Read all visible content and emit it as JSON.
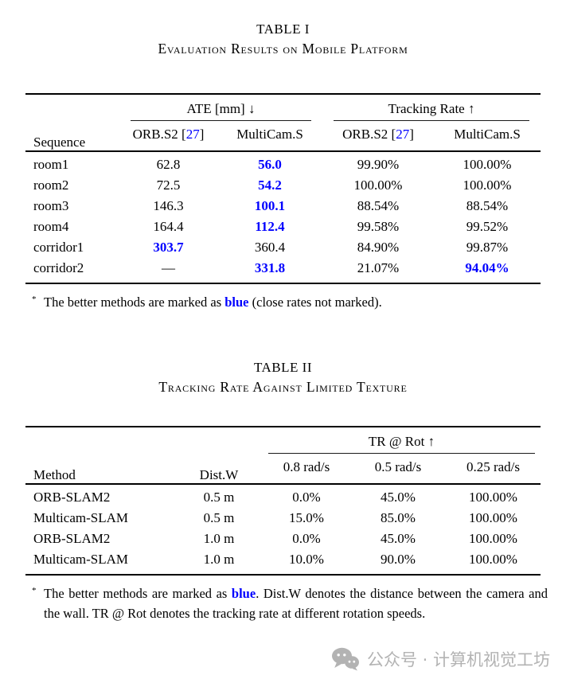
{
  "colors": {
    "accent_blue": "#0000ff",
    "text": "#000000",
    "watermark_gray": "#b3b3b3"
  },
  "table1": {
    "label": "TABLE I",
    "caption": "Evaluation Results on Mobile Platform",
    "columns": {
      "row_header": "Sequence",
      "groups": [
        {
          "label": "ATE [mm] ↓"
        },
        {
          "label": "Tracking Rate ↑"
        }
      ],
      "subcolumns": [
        {
          "segments": [
            {
              "text": "ORB.S2 ["
            },
            {
              "text": "27",
              "style": "cite"
            },
            {
              "text": "]"
            }
          ]
        },
        {
          "segments": [
            {
              "text": "MultiCam.S"
            }
          ]
        },
        {
          "segments": [
            {
              "text": "ORB.S2 ["
            },
            {
              "text": "27",
              "style": "cite"
            },
            {
              "text": "]"
            }
          ]
        },
        {
          "segments": [
            {
              "text": "MultiCam.S"
            }
          ]
        }
      ]
    },
    "rows": [
      {
        "cells": [
          {
            "text": "room1"
          },
          {
            "text": "62.8"
          },
          {
            "text": "56.0",
            "style": "blue"
          },
          {
            "text": "99.90%"
          },
          {
            "text": "100.00%"
          }
        ]
      },
      {
        "cells": [
          {
            "text": "room2"
          },
          {
            "text": "72.5"
          },
          {
            "text": "54.2",
            "style": "blue"
          },
          {
            "text": "100.00%"
          },
          {
            "text": "100.00%"
          }
        ]
      },
      {
        "cells": [
          {
            "text": "room3"
          },
          {
            "text": "146.3"
          },
          {
            "text": "100.1",
            "style": "blue"
          },
          {
            "text": "88.54%"
          },
          {
            "text": "88.54%"
          }
        ]
      },
      {
        "cells": [
          {
            "text": "room4"
          },
          {
            "text": "164.4"
          },
          {
            "text": "112.4",
            "style": "blue"
          },
          {
            "text": "99.58%"
          },
          {
            "text": "99.52%"
          }
        ]
      },
      {
        "cells": [
          {
            "text": "corridor1"
          },
          {
            "text": "303.7",
            "style": "blue"
          },
          {
            "text": "360.4"
          },
          {
            "text": "84.90%"
          },
          {
            "text": "99.87%"
          }
        ]
      },
      {
        "cells": [
          {
            "text": "corridor2"
          },
          {
            "text": "—"
          },
          {
            "text": "331.8",
            "style": "blue"
          },
          {
            "text": "21.07%"
          },
          {
            "text": "94.04%",
            "style": "blue"
          }
        ]
      }
    ],
    "footnote": {
      "marker": "*",
      "segments": [
        {
          "text": "The better methods are marked as "
        },
        {
          "text": "blue",
          "style": "blue"
        },
        {
          "text": " (close rates not marked)."
        }
      ]
    }
  },
  "table2": {
    "label": "TABLE II",
    "caption": "Tracking Rate Against Limited Texture",
    "columns": {
      "method": "Method",
      "dist": "Dist.W",
      "group": "TR @ Rot ↑",
      "subcolumns": [
        "0.8 rad/s",
        "0.5 rad/s",
        "0.25 rad/s"
      ]
    },
    "rows": [
      {
        "cells": [
          {
            "text": "ORB-SLAM2"
          },
          {
            "text": "0.5 m"
          },
          {
            "text": "0.0%"
          },
          {
            "text": "45.0%"
          },
          {
            "text": "100.00%"
          }
        ]
      },
      {
        "cells": [
          {
            "text": "Multicam-SLAM"
          },
          {
            "text": "0.5 m"
          },
          {
            "text": "15.0%"
          },
          {
            "text": "85.0%"
          },
          {
            "text": "100.00%"
          }
        ]
      },
      {
        "cells": [
          {
            "text": "ORB-SLAM2"
          },
          {
            "text": "1.0 m"
          },
          {
            "text": "0.0%"
          },
          {
            "text": "45.0%"
          },
          {
            "text": "100.00%"
          }
        ]
      },
      {
        "cells": [
          {
            "text": "Multicam-SLAM"
          },
          {
            "text": "1.0 m"
          },
          {
            "text": "10.0%"
          },
          {
            "text": "90.0%"
          },
          {
            "text": "100.00%"
          }
        ]
      }
    ],
    "footnote": {
      "marker": "*",
      "segments": [
        {
          "text": "The better methods are marked as "
        },
        {
          "text": "blue",
          "style": "blue"
        },
        {
          "text": ". Dist.W denotes the distance between the camera and the wall. TR @ Rot denotes the tracking rate at different rotation speeds."
        }
      ]
    }
  },
  "watermark": {
    "icon": "wechat-official-account-icon",
    "text": "公众号 · 计算机视觉工坊"
  }
}
